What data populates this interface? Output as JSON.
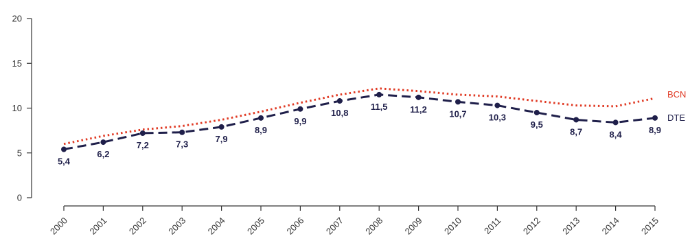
{
  "chart_data": {
    "type": "line",
    "title": "",
    "xlabel": "",
    "ylabel": "",
    "x": [
      "2000",
      "2001",
      "2002",
      "2003",
      "2004",
      "2005",
      "2006",
      "2007",
      "2008",
      "2009",
      "2010",
      "2011",
      "2012",
      "2013",
      "2014",
      "2015"
    ],
    "ylim": [
      0,
      20
    ],
    "yticks": [
      0,
      5,
      10,
      15,
      20
    ],
    "grid": false,
    "series": [
      {
        "name": "BCN",
        "color": "#e03a24",
        "style": "dotted",
        "values": [
          6.0,
          6.9,
          7.6,
          8.0,
          8.7,
          9.6,
          10.6,
          11.5,
          12.2,
          11.9,
          11.5,
          11.3,
          10.8,
          10.3,
          10.2,
          11.1
        ]
      },
      {
        "name": "DTE",
        "color": "#1f1f4a",
        "style": "dashed",
        "markers": true,
        "values": [
          5.4,
          6.2,
          7.2,
          7.3,
          7.9,
          8.9,
          9.9,
          10.8,
          11.5,
          11.2,
          10.7,
          10.3,
          9.5,
          8.7,
          8.4,
          8.9
        ],
        "labels": [
          "5,4",
          "6,2",
          "7,2",
          "7,3",
          "7,9",
          "8,9",
          "9,9",
          "10,8",
          "11,5",
          "11,2",
          "10,7",
          "10,3",
          "9,5",
          "8,7",
          "8,4",
          "8,9"
        ]
      }
    ]
  }
}
